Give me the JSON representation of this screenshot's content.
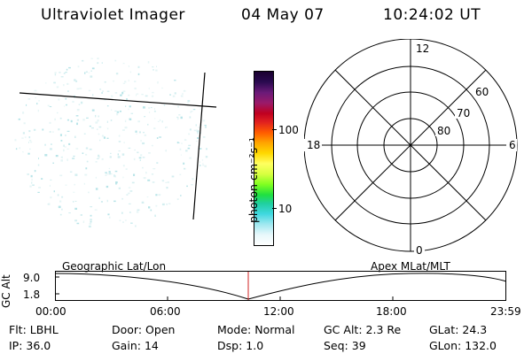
{
  "header": {
    "instrument": "Ultraviolet Imager",
    "date": "04 May 07",
    "time": "10:24:02 UT"
  },
  "colorbar": {
    "unit_label": "photon cm⁻²s⁻¹",
    "ticks": [
      "100",
      "10"
    ],
    "colors": [
      "#1a0030",
      "#2a0a50",
      "#6a1a78",
      "#9a1a6a",
      "#c00020",
      "#e02020",
      "#ff5a00",
      "#ffa500",
      "#ffd800",
      "#ffff60",
      "#d8ff40",
      "#80ff20",
      "#20e040",
      "#20d0a0",
      "#40d8e0",
      "#a0e8f0",
      "#e8f8fb",
      "#ffffff"
    ]
  },
  "polar_plot": {
    "mlt_labels": {
      "top": "12",
      "left": "18",
      "right": "6",
      "bottom": "0"
    },
    "lat_labels": [
      "60",
      "70",
      "80"
    ]
  },
  "altitude_plot": {
    "left_title": "Geographic Lat/Lon",
    "right_title": "Apex MLat/MLT",
    "ylabel": "GC Alt",
    "yticks": [
      "9.0",
      "1.8"
    ],
    "xticks": [
      "00:00",
      "06:00",
      "12:00",
      "18:00",
      "23:59"
    ]
  },
  "status": {
    "row1": [
      {
        "label": "Flt:",
        "value": "LBHL"
      },
      {
        "label": "Door:",
        "value": "Open"
      },
      {
        "label": "Mode:",
        "value": "Normal"
      },
      {
        "label": "GC Alt:",
        "value": "2.3 Re"
      },
      {
        "label": "GLat:",
        "value": "24.3"
      }
    ],
    "row2": [
      {
        "label": "IP:",
        "value": "36.0"
      },
      {
        "label": "Gain:",
        "value": "14"
      },
      {
        "label": "Dsp:",
        "value": "1.0"
      },
      {
        "label": "Seq:",
        "value": "39"
      },
      {
        "label": "GLon:",
        "value": "132.0"
      }
    ]
  }
}
